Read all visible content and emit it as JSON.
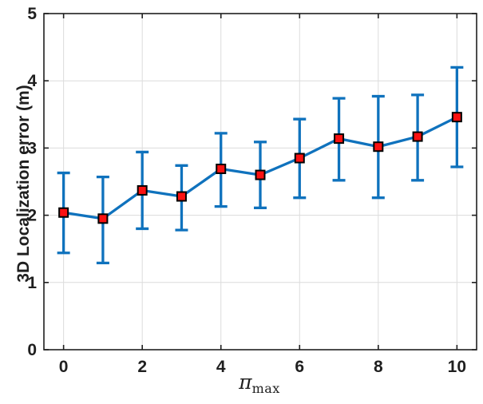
{
  "chart_data": {
    "type": "line",
    "subtype": "errorbar",
    "title": "",
    "ylabel": "3D Localization error (m)",
    "xlabel_symbol": "π",
    "xlabel_subscript": "max",
    "x": [
      0,
      1,
      2,
      3,
      4,
      5,
      6,
      7,
      8,
      9,
      10
    ],
    "series": [
      {
        "name": "3D localization error",
        "values": [
          2.04,
          1.95,
          2.37,
          2.28,
          2.69,
          2.6,
          2.85,
          3.14,
          3.02,
          3.17,
          3.46
        ],
        "err_upper": [
          2.63,
          2.57,
          2.94,
          2.74,
          3.22,
          3.09,
          3.43,
          3.74,
          3.77,
          3.79,
          4.2
        ],
        "err_lower": [
          1.44,
          1.29,
          1.8,
          1.78,
          2.13,
          2.11,
          2.26,
          2.52,
          2.26,
          2.52,
          2.72
        ]
      }
    ],
    "xlim": [
      -0.5,
      10.5
    ],
    "ylim": [
      0,
      5
    ],
    "xticks": [
      0,
      2,
      4,
      6,
      8,
      10
    ],
    "yticks": [
      0,
      1,
      2,
      3,
      4,
      5
    ],
    "grid": true,
    "legend": "none",
    "colors": {
      "line": "#0F72BD",
      "marker_face": "#FB1111",
      "marker_edge": "#000000",
      "axis": "#1f1f1f",
      "grid": "#DCDCDC",
      "background": "#ffffff"
    }
  }
}
